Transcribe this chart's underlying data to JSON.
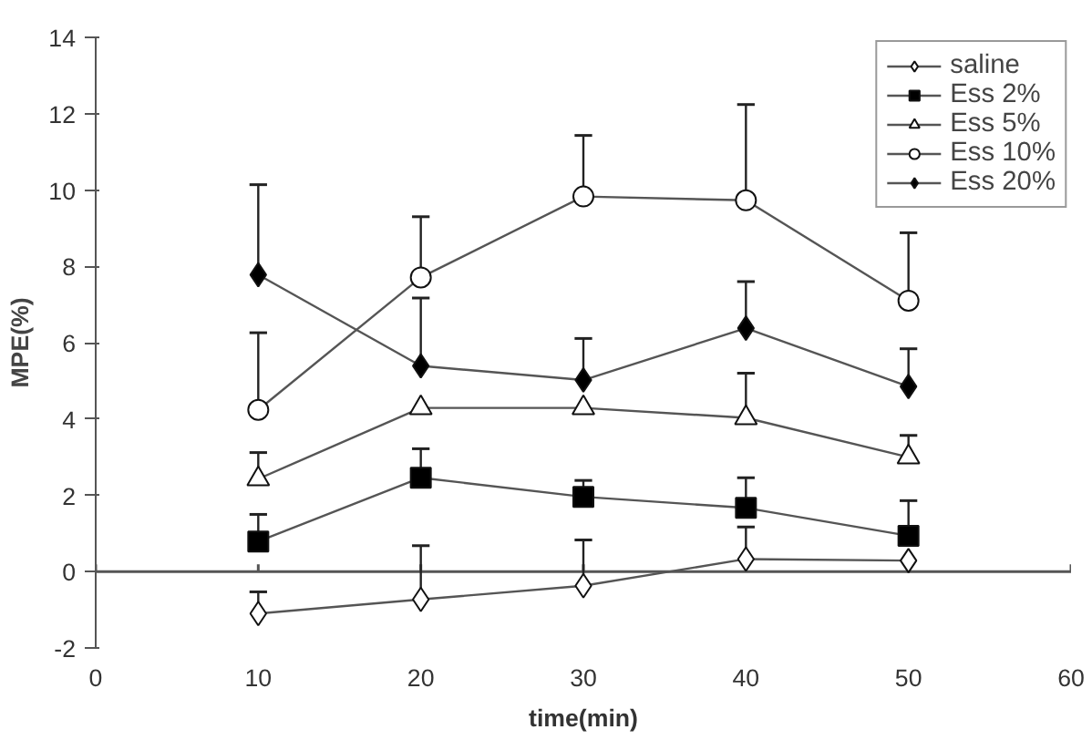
{
  "chart_data": {
    "type": "line",
    "xlabel": "time(min)",
    "ylabel": "MPE(%)",
    "x": [
      10,
      20,
      30,
      40,
      50
    ],
    "xlim": [
      0,
      60
    ],
    "xticks": [
      0,
      10,
      20,
      30,
      40,
      50,
      60
    ],
    "ylim": [
      -2,
      14
    ],
    "yticks": [
      -2,
      0,
      2,
      4,
      6,
      8,
      10,
      12,
      14
    ],
    "legend": "top right",
    "line_style": "solid",
    "series": [
      {
        "name": "saline",
        "color": "#ffffff",
        "marker": "diamond",
        "values": [
          -1.1,
          -0.73,
          -0.37,
          0.33,
          0.29
        ],
        "errors": [
          [
            -1.1,
            -0.53
          ],
          [
            -0.73,
            0.68
          ],
          [
            -0.37,
            0.83
          ],
          [
            0.33,
            1.17
          ],
          null
        ]
      },
      {
        "name": "Ess 2%",
        "color": "#000000",
        "marker": "square",
        "values": [
          0.79,
          2.46,
          1.96,
          1.67,
          0.94
        ],
        "errors": [
          [
            0.79,
            1.5
          ],
          [
            2.46,
            3.22
          ],
          [
            1.96,
            2.39
          ],
          [
            1.67,
            2.46
          ],
          [
            0.94,
            1.86
          ]
        ]
      },
      {
        "name": "Ess 5%",
        "color": "#ffffff",
        "marker": "triangle",
        "values": [
          2.43,
          4.29,
          4.29,
          4.03,
          3.0
        ],
        "errors": [
          [
            2.43,
            3.12
          ],
          null,
          null,
          [
            4.03,
            5.2
          ],
          [
            3.0,
            3.57
          ]
        ]
      },
      {
        "name": "Ess 10%",
        "color": "#ffffff",
        "marker": "circle",
        "values": [
          4.24,
          7.71,
          9.83,
          9.73,
          7.1
        ],
        "errors": [
          [
            4.24,
            6.26
          ],
          [
            7.71,
            9.3
          ],
          [
            9.83,
            11.43
          ],
          [
            9.73,
            12.24
          ],
          [
            7.1,
            8.88
          ]
        ]
      },
      {
        "name": "Ess 20%",
        "color": "#000000",
        "marker": "diamond",
        "values": [
          7.78,
          5.39,
          5.02,
          6.38,
          4.85
        ],
        "errors": [
          [
            7.78,
            10.14
          ],
          [
            5.39,
            7.17
          ],
          [
            5.02,
            6.11
          ],
          [
            6.38,
            7.6
          ],
          [
            4.85,
            5.84
          ]
        ]
      }
    ]
  }
}
